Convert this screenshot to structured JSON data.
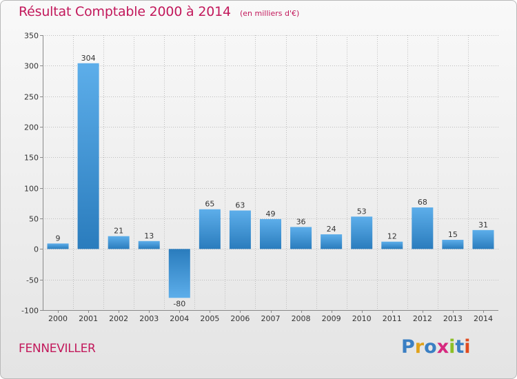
{
  "title": "Résultat Comptable 2000 à 2014",
  "subtitle": "(en milliers d'€)",
  "place": "FENNEVILLER",
  "logo": {
    "text": "Proxiti",
    "letters": [
      "P",
      "r",
      "o",
      "x",
      "i",
      "t",
      "i"
    ],
    "colors": [
      "#3a7fc3",
      "#e0a21b",
      "#3a7fc3",
      "#d6297f",
      "#8cbf26",
      "#3a7fc3",
      "#e04b1f"
    ]
  },
  "colors": {
    "title": "#c2185b",
    "bar_light": "#5daeea",
    "bar_dark": "#2a7cbd",
    "grid": "#bcbcbc"
  },
  "chart_data": {
    "type": "bar",
    "title": "Résultat Comptable 2000 à 2014",
    "ylabel": "en milliers d'€",
    "xlabel": "",
    "categories": [
      "2000",
      "2001",
      "2002",
      "2003",
      "2004",
      "2005",
      "2006",
      "2007",
      "2008",
      "2009",
      "2010",
      "2011",
      "2012",
      "2013",
      "2014"
    ],
    "values": [
      9,
      304,
      21,
      13,
      -80,
      65,
      63,
      49,
      36,
      24,
      53,
      12,
      68,
      15,
      31
    ],
    "ylim": [
      -100,
      350
    ],
    "yticks": [
      -100,
      -50,
      0,
      50,
      100,
      150,
      200,
      250,
      300,
      350
    ],
    "grid": true,
    "legend": "none"
  }
}
